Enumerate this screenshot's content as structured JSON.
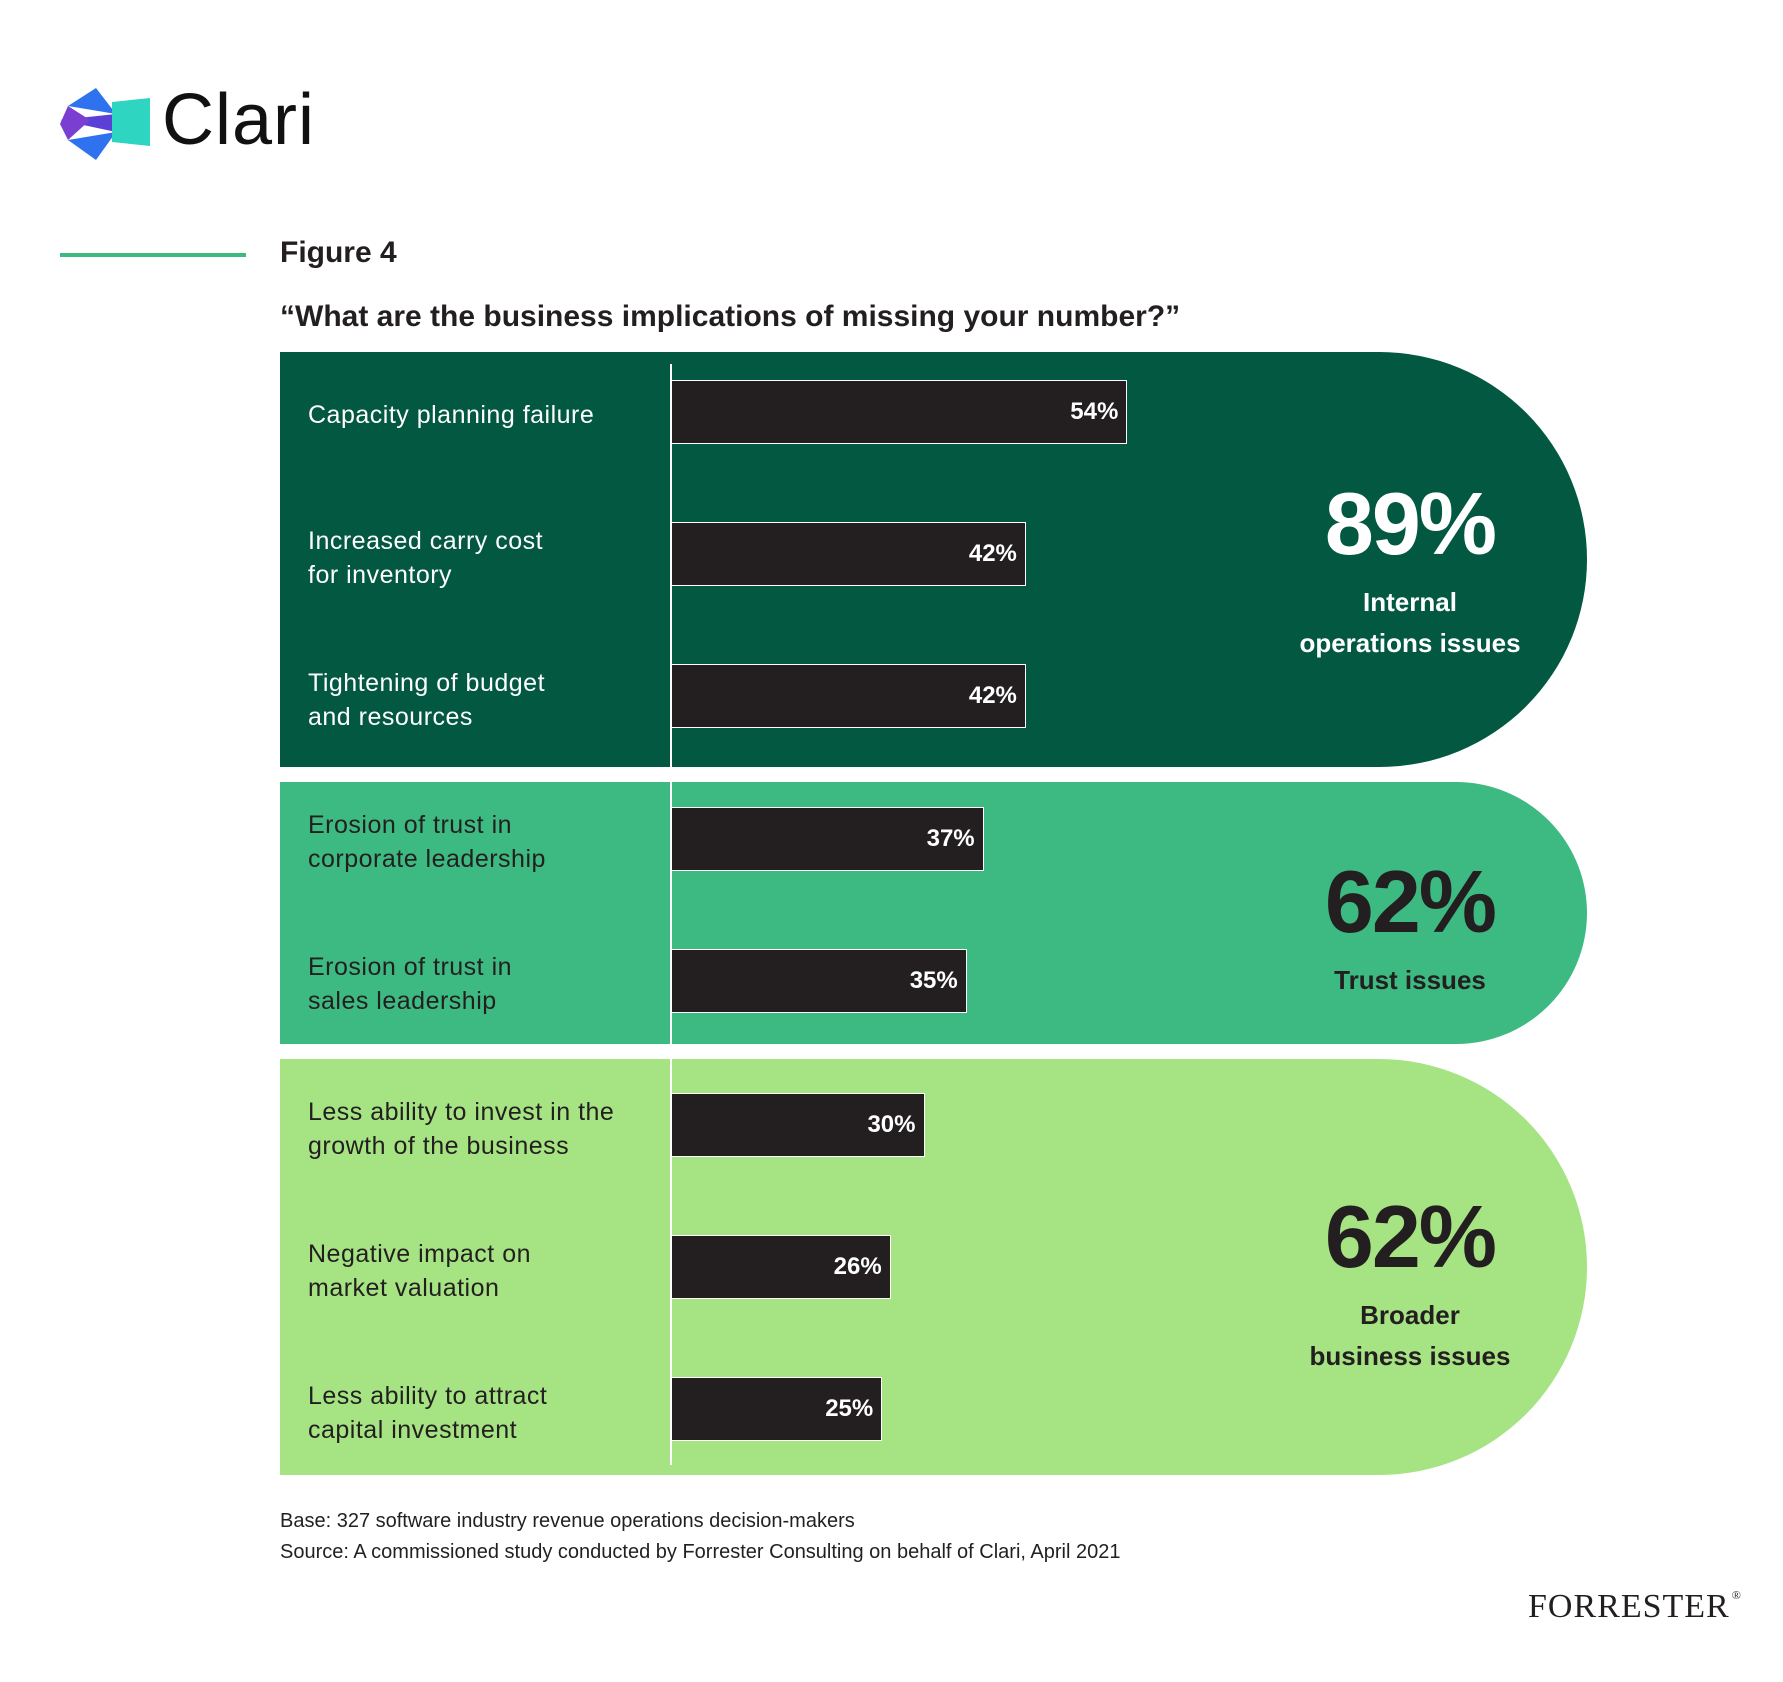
{
  "brand": {
    "name": "Clari"
  },
  "figure": {
    "label": "Figure 4",
    "question": "“What are the business implications of missing your number?”"
  },
  "colors": {
    "dark_green": "#035841",
    "mid_green": "#3db982",
    "light_green": "#a6e382",
    "bar": "#231f20",
    "rule": "#3db982"
  },
  "chart_data": {
    "type": "bar",
    "orientation": "horizontal",
    "xlim": [
      0,
      100
    ],
    "unit": "%",
    "groups": [
      {
        "summary_value": "89%",
        "summary_label_lines": [
          "Internal",
          "operations issues"
        ],
        "color": "#035841",
        "text_color": "#ffffff",
        "items": [
          {
            "label_lines": [
              "Capacity planning failure"
            ],
            "value": 54,
            "value_label": "54%"
          },
          {
            "label_lines": [
              "Increased carry cost",
              "for inventory"
            ],
            "value": 42,
            "value_label": "42%"
          },
          {
            "label_lines": [
              "Tightening of budget",
              "and resources"
            ],
            "value": 42,
            "value_label": "42%"
          }
        ]
      },
      {
        "summary_value": "62%",
        "summary_label_lines": [
          "Trust issues"
        ],
        "color": "#3db982",
        "text_color": "#231f20",
        "items": [
          {
            "label_lines": [
              "Erosion of trust in",
              "corporate leadership"
            ],
            "value": 37,
            "value_label": "37%"
          },
          {
            "label_lines": [
              "Erosion of trust in",
              "sales leadership"
            ],
            "value": 35,
            "value_label": "35%"
          }
        ]
      },
      {
        "summary_value": "62%",
        "summary_label_lines": [
          "Broader",
          "business issues"
        ],
        "color": "#a6e382",
        "text_color": "#231f20",
        "items": [
          {
            "label_lines": [
              "Less ability to invest in the",
              "growth of the business"
            ],
            "value": 30,
            "value_label": "30%"
          },
          {
            "label_lines": [
              "Negative impact on",
              "market valuation"
            ],
            "value": 26,
            "value_label": "26%"
          },
          {
            "label_lines": [
              "Less ability to attract",
              "capital investment"
            ],
            "value": 25,
            "value_label": "25%"
          }
        ]
      }
    ]
  },
  "notes": {
    "base": "Base: 327 software industry revenue operations decision-makers",
    "source": "Source: A commissioned study conducted by Forrester Consulting on behalf of Clari, April 2021"
  },
  "publisher": {
    "name": "FORRESTER",
    "mark": "®"
  }
}
